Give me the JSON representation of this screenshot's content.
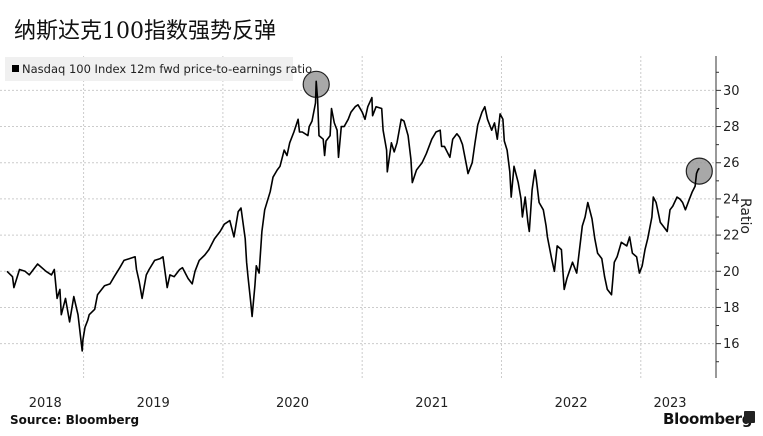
{
  "title": "纳斯达克100指数强势反弹",
  "source": "Source: Bloomberg",
  "brand": "Bloomberg",
  "chart_data": {
    "type": "line",
    "title": "纳斯达克100指数强势反弹",
    "legend": {
      "entries": [
        "Nasdaq 100 Index 12m fwd price-to-earnings ratio"
      ],
      "placement": "top-left"
    },
    "ylabel": "Ratio",
    "y_axis_side": "right",
    "ylim": [
      14.1,
      31.9
    ],
    "yticks": [
      16,
      18,
      20,
      22,
      24,
      26,
      28,
      30
    ],
    "xlim": [
      2018.4,
      2023.54
    ],
    "xtick_labels": [
      "2018",
      "2019",
      "2020",
      "2021",
      "2022",
      "2023"
    ],
    "year_boundaries": [
      2019,
      2020,
      2021,
      2022,
      2023
    ],
    "grid": true,
    "colors": {
      "line": "#000000",
      "highlight": "#999999",
      "legend_bg": "#f0f0f0",
      "grid": "#cccccc"
    },
    "highlights": [
      [
        2020.67,
        30.5
      ],
      [
        2023.42,
        25.7
      ]
    ],
    "series": [
      {
        "name": "Nasdaq 100 Index 12m fwd price-to-earnings ratio",
        "points": [
          [
            2018.45,
            20.0
          ],
          [
            2018.49,
            19.7
          ],
          [
            2018.5,
            19.1
          ],
          [
            2018.54,
            20.1
          ],
          [
            2018.58,
            20.0
          ],
          [
            2018.61,
            19.8
          ],
          [
            2018.67,
            20.4
          ],
          [
            2018.73,
            20.0
          ],
          [
            2018.77,
            19.8
          ],
          [
            2018.79,
            20.1
          ],
          [
            2018.81,
            18.5
          ],
          [
            2018.83,
            19.0
          ],
          [
            2018.84,
            17.6
          ],
          [
            2018.87,
            18.5
          ],
          [
            2018.9,
            17.2
          ],
          [
            2018.93,
            18.6
          ],
          [
            2018.96,
            17.6
          ],
          [
            2018.99,
            15.6
          ],
          [
            2018.995,
            16.2
          ],
          [
            2019.01,
            16.9
          ],
          [
            2019.03,
            17.3
          ],
          [
            2019.04,
            17.6
          ],
          [
            2019.08,
            17.9
          ],
          [
            2019.1,
            18.7
          ],
          [
            2019.15,
            19.2
          ],
          [
            2019.19,
            19.3
          ],
          [
            2019.22,
            19.7
          ],
          [
            2019.26,
            20.2
          ],
          [
            2019.29,
            20.6
          ],
          [
            2019.33,
            20.7
          ],
          [
            2019.37,
            20.8
          ],
          [
            2019.38,
            20.1
          ],
          [
            2019.4,
            19.4
          ],
          [
            2019.42,
            18.5
          ],
          [
            2019.45,
            19.8
          ],
          [
            2019.47,
            20.1
          ],
          [
            2019.51,
            20.6
          ],
          [
            2019.55,
            20.7
          ],
          [
            2019.57,
            20.8
          ],
          [
            2019.6,
            19.1
          ],
          [
            2019.62,
            19.8
          ],
          [
            2019.65,
            19.7
          ],
          [
            2019.69,
            20.1
          ],
          [
            2019.71,
            20.2
          ],
          [
            2019.75,
            19.6
          ],
          [
            2019.78,
            19.3
          ],
          [
            2019.8,
            20.0
          ],
          [
            2019.83,
            20.6
          ],
          [
            2019.87,
            20.9
          ],
          [
            2019.9,
            21.2
          ],
          [
            2019.94,
            21.8
          ],
          [
            2019.98,
            22.2
          ],
          [
            2020.01,
            22.6
          ],
          [
            2020.05,
            22.8
          ],
          [
            2020.08,
            21.9
          ],
          [
            2020.11,
            23.3
          ],
          [
            2020.13,
            23.5
          ],
          [
            2020.16,
            21.8
          ],
          [
            2020.17,
            20.5
          ],
          [
            2020.18,
            19.7
          ],
          [
            2020.2,
            18.3
          ],
          [
            2020.21,
            17.5
          ],
          [
            2020.23,
            19.2
          ],
          [
            2020.24,
            20.3
          ],
          [
            2020.26,
            19.9
          ],
          [
            2020.28,
            22.2
          ],
          [
            2020.3,
            23.4
          ],
          [
            2020.34,
            24.4
          ],
          [
            2020.36,
            25.2
          ],
          [
            2020.39,
            25.6
          ],
          [
            2020.41,
            25.8
          ],
          [
            2020.44,
            26.7
          ],
          [
            2020.46,
            26.4
          ],
          [
            2020.48,
            27.1
          ],
          [
            2020.51,
            27.7
          ],
          [
            2020.54,
            28.4
          ],
          [
            2020.55,
            27.7
          ],
          [
            2020.57,
            27.7
          ],
          [
            2020.61,
            27.5
          ],
          [
            2020.62,
            28.0
          ],
          [
            2020.64,
            28.3
          ],
          [
            2020.665,
            29.3
          ],
          [
            2020.67,
            30.5
          ],
          [
            2020.68,
            29.5
          ],
          [
            2020.69,
            27.5
          ],
          [
            2020.72,
            27.3
          ],
          [
            2020.73,
            26.4
          ],
          [
            2020.74,
            27.2
          ],
          [
            2020.77,
            27.5
          ],
          [
            2020.78,
            29.0
          ],
          [
            2020.8,
            28.2
          ],
          [
            2020.82,
            27.8
          ],
          [
            2020.83,
            26.3
          ],
          [
            2020.85,
            28.0
          ],
          [
            2020.87,
            28.0
          ],
          [
            2020.9,
            28.4
          ],
          [
            2020.92,
            28.8
          ],
          [
            2020.95,
            29.1
          ],
          [
            2020.97,
            29.2
          ],
          [
            2021.0,
            28.8
          ],
          [
            2021.02,
            28.4
          ],
          [
            2021.04,
            29.1
          ],
          [
            2021.07,
            29.6
          ],
          [
            2021.075,
            28.6
          ],
          [
            2021.1,
            29.1
          ],
          [
            2021.14,
            29.0
          ],
          [
            2021.15,
            27.8
          ],
          [
            2021.175,
            26.7
          ],
          [
            2021.18,
            25.5
          ],
          [
            2021.21,
            27.1
          ],
          [
            2021.23,
            26.6
          ],
          [
            2021.25,
            27.1
          ],
          [
            2021.28,
            28.4
          ],
          [
            2021.3,
            28.3
          ],
          [
            2021.33,
            27.5
          ],
          [
            2021.35,
            26.2
          ],
          [
            2021.36,
            24.9
          ],
          [
            2021.39,
            25.6
          ],
          [
            2021.41,
            25.8
          ],
          [
            2021.43,
            26.0
          ],
          [
            2021.46,
            26.5
          ],
          [
            2021.5,
            27.3
          ],
          [
            2021.53,
            27.7
          ],
          [
            2021.56,
            27.8
          ],
          [
            2021.57,
            26.9
          ],
          [
            2021.59,
            26.9
          ],
          [
            2021.63,
            26.3
          ],
          [
            2021.65,
            27.3
          ],
          [
            2021.68,
            27.6
          ],
          [
            2021.7,
            27.4
          ],
          [
            2021.72,
            27.0
          ],
          [
            2021.75,
            25.8
          ],
          [
            2021.76,
            25.4
          ],
          [
            2021.79,
            26.0
          ],
          [
            2021.81,
            27.1
          ],
          [
            2021.83,
            28.1
          ],
          [
            2021.86,
            28.8
          ],
          [
            2021.88,
            29.1
          ],
          [
            2021.9,
            28.4
          ],
          [
            2021.93,
            27.8
          ],
          [
            2021.95,
            28.2
          ],
          [
            2021.97,
            27.3
          ],
          [
            2021.99,
            28.7
          ],
          [
            2022.01,
            28.4
          ],
          [
            2022.02,
            27.2
          ],
          [
            2022.04,
            26.7
          ],
          [
            2022.06,
            25.5
          ],
          [
            2022.07,
            24.1
          ],
          [
            2022.09,
            25.8
          ],
          [
            2022.12,
            24.9
          ],
          [
            2022.14,
            24.0
          ],
          [
            2022.15,
            23.0
          ],
          [
            2022.17,
            24.1
          ],
          [
            2022.19,
            22.7
          ],
          [
            2022.2,
            22.2
          ],
          [
            2022.22,
            24.5
          ],
          [
            2022.24,
            25.6
          ],
          [
            2022.25,
            25.1
          ],
          [
            2022.27,
            23.8
          ],
          [
            2022.3,
            23.4
          ],
          [
            2022.32,
            22.5
          ],
          [
            2022.33,
            21.9
          ],
          [
            2022.36,
            20.7
          ],
          [
            2022.38,
            20.0
          ],
          [
            2022.4,
            21.4
          ],
          [
            2022.43,
            21.2
          ],
          [
            2022.45,
            19.0
          ],
          [
            2022.47,
            19.6
          ],
          [
            2022.51,
            20.5
          ],
          [
            2022.54,
            19.9
          ],
          [
            2022.56,
            21.2
          ],
          [
            2022.58,
            22.5
          ],
          [
            2022.6,
            23.0
          ],
          [
            2022.62,
            23.8
          ],
          [
            2022.65,
            22.9
          ],
          [
            2022.67,
            21.8
          ],
          [
            2022.69,
            21.0
          ],
          [
            2022.72,
            20.7
          ],
          [
            2022.74,
            19.7
          ],
          [
            2022.76,
            19.0
          ],
          [
            2022.79,
            18.7
          ],
          [
            2022.81,
            20.5
          ],
          [
            2022.83,
            20.8
          ],
          [
            2022.86,
            21.6
          ],
          [
            2022.9,
            21.4
          ],
          [
            2022.92,
            21.9
          ],
          [
            2022.94,
            21.0
          ],
          [
            2022.97,
            20.8
          ],
          [
            2022.99,
            19.9
          ],
          [
            2023.01,
            20.3
          ],
          [
            2023.03,
            21.2
          ],
          [
            2023.05,
            21.8
          ],
          [
            2023.08,
            23.0
          ],
          [
            2023.09,
            24.1
          ],
          [
            2023.11,
            23.8
          ],
          [
            2023.14,
            22.7
          ],
          [
            2023.16,
            22.5
          ],
          [
            2023.19,
            22.2
          ],
          [
            2023.21,
            23.4
          ],
          [
            2023.23,
            23.6
          ],
          [
            2023.26,
            24.1
          ],
          [
            2023.28,
            24.0
          ],
          [
            2023.3,
            23.8
          ],
          [
            2023.32,
            23.4
          ],
          [
            2023.35,
            24.0
          ],
          [
            2023.37,
            24.4
          ],
          [
            2023.39,
            24.7
          ],
          [
            2023.4,
            25.4
          ],
          [
            2023.41,
            25.6
          ],
          [
            2023.42,
            25.7
          ]
        ]
      }
    ]
  }
}
